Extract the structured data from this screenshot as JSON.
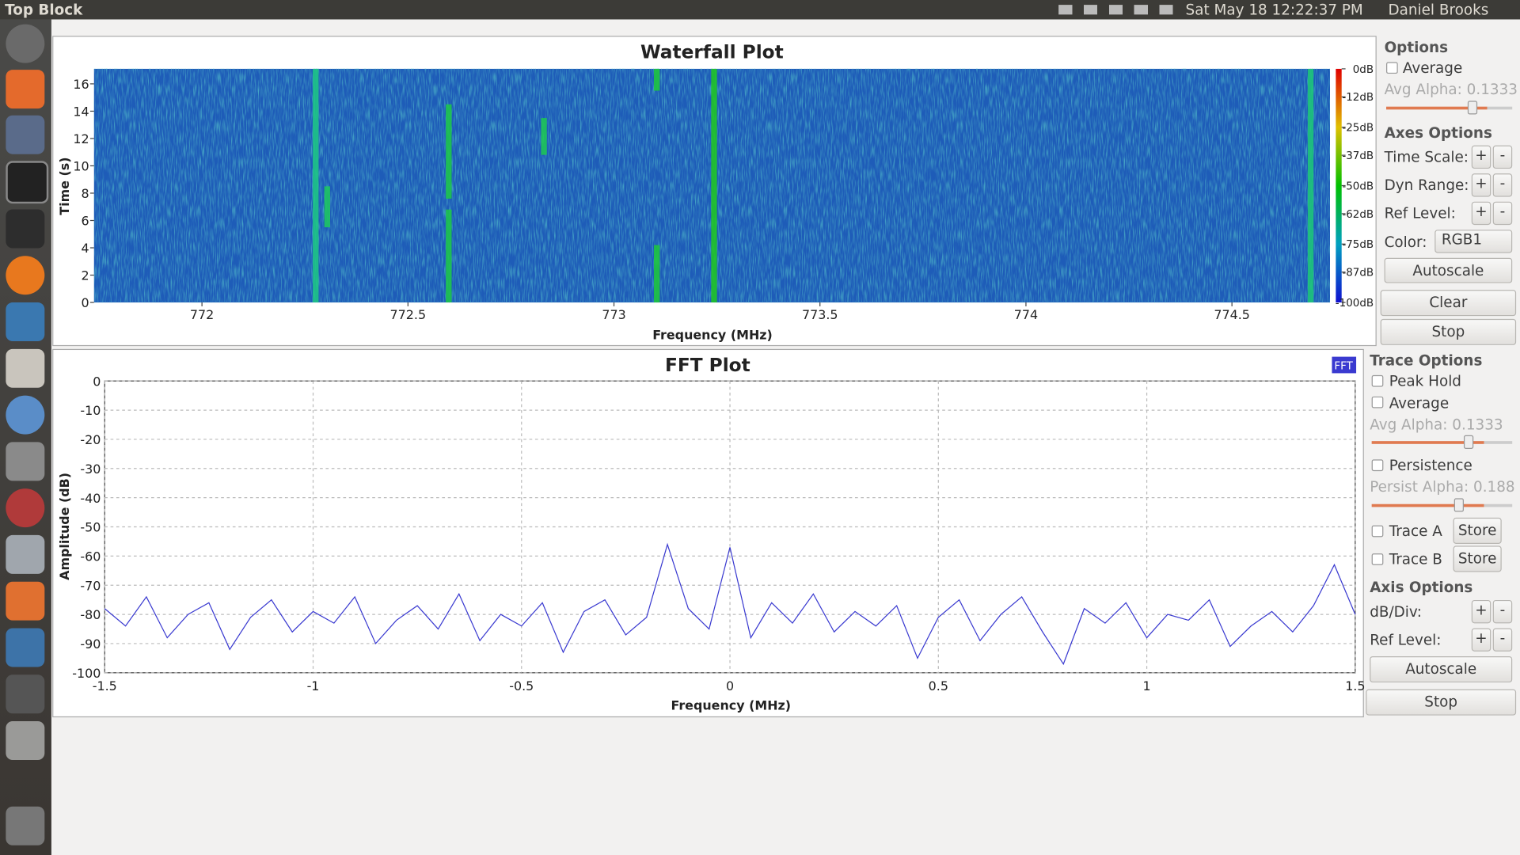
{
  "topbar": {
    "title": "Top Block",
    "datetime": "Sat May 18 12:22:37 PM",
    "user": "Daniel Brooks"
  },
  "waterfall": {
    "type": "heatmap",
    "title": "Waterfall Plot",
    "x_label": "Frequency (MHz)",
    "y_label": "Time (s)",
    "xlim": [
      771.738,
      774.738
    ],
    "xticks": [
      772,
      772.5,
      773,
      773.5,
      774,
      774.5
    ],
    "ylim": [
      0,
      17.1
    ],
    "yticks": [
      0,
      2,
      4,
      6,
      8,
      10,
      12,
      14,
      16
    ],
    "clim": [
      -100,
      0
    ],
    "cticks": [
      {
        "value": 0,
        "label": "0dB"
      },
      {
        "value": -12,
        "label": "-12dB"
      },
      {
        "value": -25,
        "label": "-25dB"
      },
      {
        "value": -37,
        "label": "-37dB"
      },
      {
        "value": -50,
        "label": "-50dB"
      },
      {
        "value": -62,
        "label": "-62dB"
      },
      {
        "value": -75,
        "label": "-75dB"
      },
      {
        "value": -87,
        "label": "-87dB"
      },
      {
        "value": -100,
        "label": "-100dB"
      }
    ],
    "signals": [
      {
        "freq": 772.276,
        "t0": 0,
        "t1": 17.1,
        "level": -72
      },
      {
        "freq": 772.304,
        "t0": 5.5,
        "t1": 8.5,
        "level": -66
      },
      {
        "freq": 772.599,
        "t0": 0,
        "t1": 6.8,
        "level": -62
      },
      {
        "freq": 772.599,
        "t0": 7.6,
        "t1": 14.5,
        "level": -62
      },
      {
        "freq": 772.83,
        "t0": 10.8,
        "t1": 13.5,
        "level": -64
      },
      {
        "freq": 773.104,
        "t0": 0,
        "t1": 4.2,
        "level": -60
      },
      {
        "freq": 773.104,
        "t0": 15.5,
        "t1": 17.1,
        "level": -60
      },
      {
        "freq": 773.243,
        "t0": 0,
        "t1": 17.1,
        "level": -55
      },
      {
        "freq": 774.691,
        "t0": 0,
        "t1": 17.1,
        "level": -70
      }
    ]
  },
  "waterfall_panel": {
    "options": "Options",
    "average": "Average",
    "avg_alpha": "Avg Alpha: 0.1333",
    "axes_options": "Axes Options",
    "time_scale": "Time Scale:",
    "dyn_range": "Dyn Range:",
    "ref_level": "Ref Level:",
    "color": "Color:",
    "color_value": "RGB1",
    "plus": "+",
    "minus": "-",
    "autoscale": "Autoscale",
    "clear": "Clear",
    "stop": "Stop"
  },
  "fft": {
    "type": "line",
    "title": "FFT Plot",
    "legend": "FFT",
    "x_label": "Frequency (MHz)",
    "y_label": "Amplitude (dB)",
    "color": "#3a3ad0",
    "grid": true,
    "xlim": [
      -1.5,
      1.5
    ],
    "xticks": [
      -1.5,
      -1,
      -0.5,
      0,
      0.5,
      1,
      1.5
    ],
    "ylim": [
      -100,
      0
    ],
    "yticks": [
      0,
      -10,
      -20,
      -30,
      -40,
      -50,
      -60,
      -70,
      -80,
      -90,
      -100
    ],
    "x": [
      -1.5,
      -1.45,
      -1.4,
      -1.35,
      -1.3,
      -1.25,
      -1.2,
      -1.15,
      -1.1,
      -1.05,
      -1,
      -0.95,
      -0.9,
      -0.85,
      -0.8,
      -0.75,
      -0.7,
      -0.65,
      -0.6,
      -0.55,
      -0.5,
      -0.45,
      -0.4,
      -0.35,
      -0.3,
      -0.25,
      -0.2,
      -0.15,
      -0.1,
      -0.05,
      0,
      0.05,
      0.1,
      0.15,
      0.2,
      0.25,
      0.3,
      0.35,
      0.4,
      0.45,
      0.5,
      0.55,
      0.6,
      0.65,
      0.7,
      0.75,
      0.8,
      0.85,
      0.9,
      0.95,
      1,
      1.05,
      1.1,
      1.15,
      1.2,
      1.25,
      1.3,
      1.35,
      1.4,
      1.45,
      1.5
    ],
    "values": [
      -78,
      -84,
      -74,
      -88,
      -80,
      -76,
      -92,
      -81,
      -75,
      -86,
      -79,
      -83,
      -74,
      -90,
      -82,
      -77,
      -85,
      -73,
      -89,
      -80,
      -84,
      -76,
      -93,
      -79,
      -75,
      -87,
      -81,
      -56,
      -78,
      -85,
      -57,
      -88,
      -76,
      -83,
      -73,
      -86,
      -79,
      -84,
      -77,
      -95,
      -81,
      -75,
      -89,
      -80,
      -74,
      -86,
      -97,
      -78,
      -83,
      -76,
      -88,
      -80,
      -82,
      -75,
      -91,
      -84,
      -79,
      -86,
      -77,
      -63,
      -80
    ]
  },
  "fft_panel": {
    "trace_options": "Trace Options",
    "peak_hold": "Peak Hold",
    "average": "Average",
    "avg_alpha": "Avg Alpha: 0.1333",
    "persistence": "Persistence",
    "persist_alpha": "Persist Alpha: 0.188",
    "trace_a": "Trace A",
    "trace_b": "Trace B",
    "store": "Store",
    "axis_options": "Axis Options",
    "db_div": "dB/Div:",
    "ref_level": "Ref Level:",
    "plus": "+",
    "minus": "-",
    "autoscale": "Autoscale",
    "stop": "Stop"
  }
}
